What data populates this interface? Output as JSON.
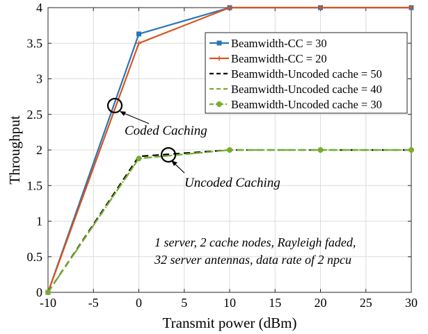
{
  "chart_data": {
    "type": "line",
    "xlabel": "Transmit power (dBm)",
    "ylabel": "Throughput",
    "xlim": [
      -10,
      30
    ],
    "ylim": [
      0,
      4
    ],
    "xticks": [
      "-10",
      "-5",
      "0",
      "5",
      "10",
      "15",
      "20",
      "25",
      "30"
    ],
    "yticks": [
      "0",
      "0.5",
      "1",
      "1.5",
      "2",
      "2.5",
      "3",
      "3.5",
      "4"
    ],
    "grid": true,
    "legend_position": "top-right",
    "x": [
      -10,
      0,
      10,
      20,
      30
    ],
    "series": [
      {
        "name": "Beamwidth-CC = 30",
        "values": [
          0,
          3.63,
          4,
          4,
          4
        ],
        "color": "#2a74b8",
        "dash": "solid",
        "marker": "square"
      },
      {
        "name": "Beamwidth-CC = 20",
        "values": [
          0,
          3.5,
          4,
          4,
          4
        ],
        "color": "#d9541e",
        "dash": "solid",
        "marker": "plus"
      },
      {
        "name": "Beamwidth-Uncoded cache = 50",
        "values": [
          0,
          1.91,
          2,
          2,
          2
        ],
        "color": "#000000",
        "dash": "dashed",
        "marker": "none"
      },
      {
        "name": "Beamwidth-Uncoded cache = 40",
        "values": [
          0,
          1.88,
          2,
          2,
          2
        ],
        "color": "#77ac30",
        "dash": "dashed",
        "marker": "none"
      },
      {
        "name": "Beamwidth-Uncoded cache = 30",
        "values": [
          0,
          1.88,
          2,
          2,
          2
        ],
        "color": "#77ac30",
        "dash": "dashdot",
        "marker": "circle"
      }
    ],
    "annotations": [
      {
        "text": "Coded Caching"
      },
      {
        "text": "Uncoded Caching"
      },
      {
        "text": "1 server, 2 cache nodes, Rayleigh faded,"
      },
      {
        "text": "32 server antennas, data rate of 2 npcu"
      }
    ]
  }
}
